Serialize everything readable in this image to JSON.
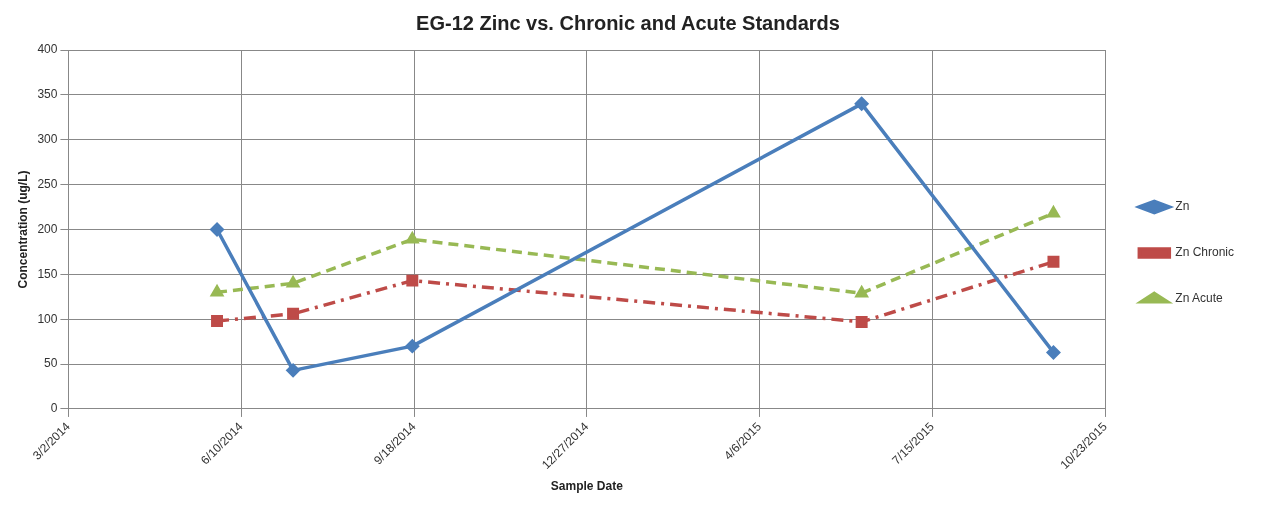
{
  "chart_data": {
    "type": "line",
    "title": "EG-12 Zinc vs. Chronic and Acute Standards",
    "xlabel": "Sample Date",
    "ylabel": "Concentration (ug/L)",
    "x": [
      "2014-05-27",
      "2014-07-10",
      "2014-09-17",
      "2015-06-04",
      "2015-09-23"
    ],
    "series": [
      {
        "name": "Zn",
        "color": "#4a7ebb",
        "values": [
          200,
          43,
          70,
          340,
          63
        ],
        "marker": "diamond",
        "line_style": "solid"
      },
      {
        "name": "Zn Chronic",
        "color": "#be4b48",
        "values": [
          98,
          106,
          143,
          97,
          164
        ],
        "marker": "square",
        "line_style": "dashdot"
      },
      {
        "name": "Zn Acute",
        "color": "#98b954",
        "values": [
          130,
          140,
          189,
          129,
          218
        ],
        "marker": "triangle",
        "line_style": "dashed"
      }
    ],
    "xlim": [
      "2014-03-02",
      "2015-10-23"
    ],
    "xticks": [
      {
        "value": "2014-03-02",
        "label": "3/2/2014"
      },
      {
        "value": "2014-06-10",
        "label": "6/10/2014"
      },
      {
        "value": "2014-09-18",
        "label": "9/18/2014"
      },
      {
        "value": "2014-12-27",
        "label": "12/27/2014"
      },
      {
        "value": "2015-04-06",
        "label": "4/6/2015"
      },
      {
        "value": "2015-07-15",
        "label": "7/15/2015"
      },
      {
        "value": "2015-10-23",
        "label": "10/23/2015"
      }
    ],
    "ylim": [
      0,
      400
    ],
    "yticks": [
      0,
      50,
      100,
      150,
      200,
      250,
      300,
      350,
      400
    ],
    "grid": true,
    "legend": "right"
  }
}
